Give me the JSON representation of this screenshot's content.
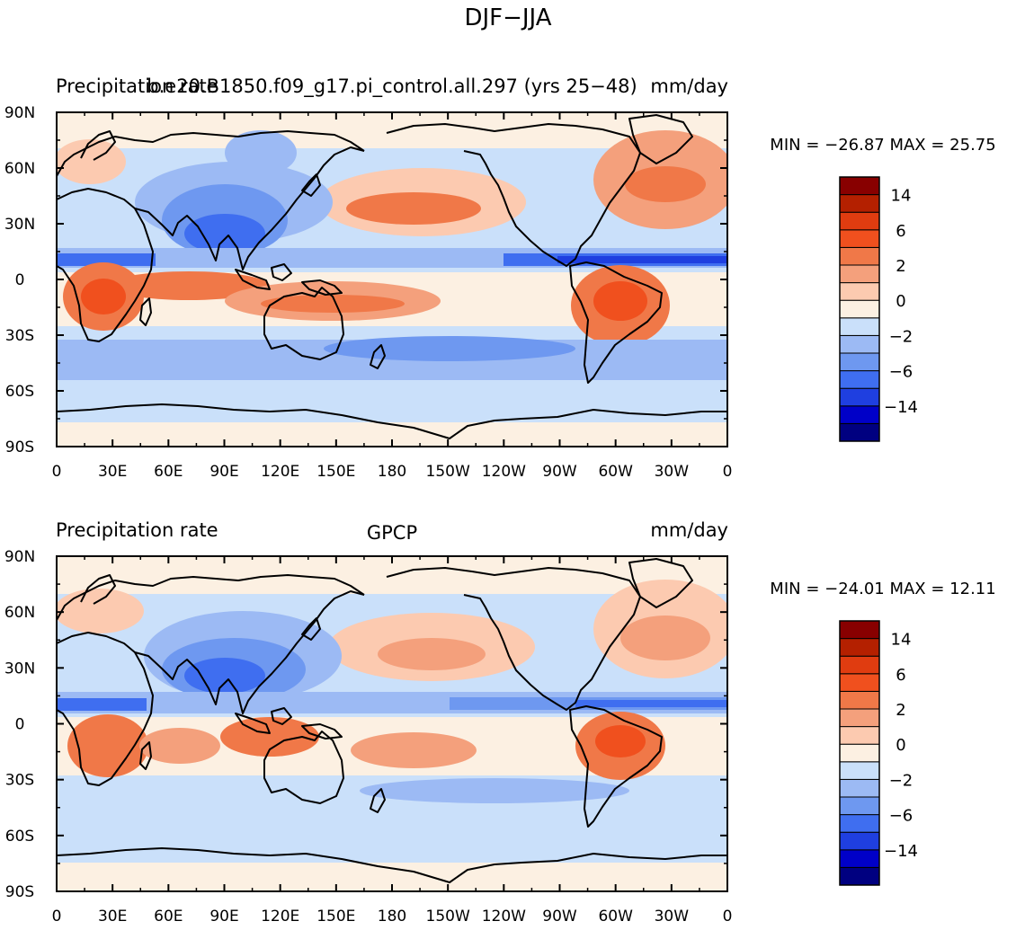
{
  "main_title": "DJF−JJA",
  "x_ticks": [
    "0",
    "30E",
    "60E",
    "90E",
    "120E",
    "150E",
    "180",
    "150W",
    "120W",
    "90W",
    "60W",
    "30W",
    "0"
  ],
  "y_ticks": [
    "90N",
    "60N",
    "30N",
    "0",
    "30S",
    "60S",
    "90S"
  ],
  "colorbar": {
    "colors": [
      "#000080",
      "#0000c8",
      "#1f3fe0",
      "#3f6ef0",
      "#6e98f0",
      "#9cbaf4",
      "#cae0fa",
      "#fcf0e2",
      "#fccab0",
      "#f4a07c",
      "#f07848",
      "#f0501e",
      "#e03c10",
      "#b42000",
      "#880000"
    ],
    "labels": [
      "−14",
      "−6",
      "−2",
      "0",
      "2",
      "6",
      "14"
    ]
  },
  "panels": [
    {
      "left_label": "Precipitation rate",
      "center_label": "b.e20.B1850.f09_g17.pi_control.all.297 (yrs 25−48)",
      "right_label": "mm/day",
      "stats": "MIN = −26.87  MAX =  25.75"
    },
    {
      "left_label": "Precipitation rate",
      "center_label": "GPCP",
      "right_label": "mm/day",
      "stats": "MIN = −24.01  MAX =  12.11"
    }
  ]
}
